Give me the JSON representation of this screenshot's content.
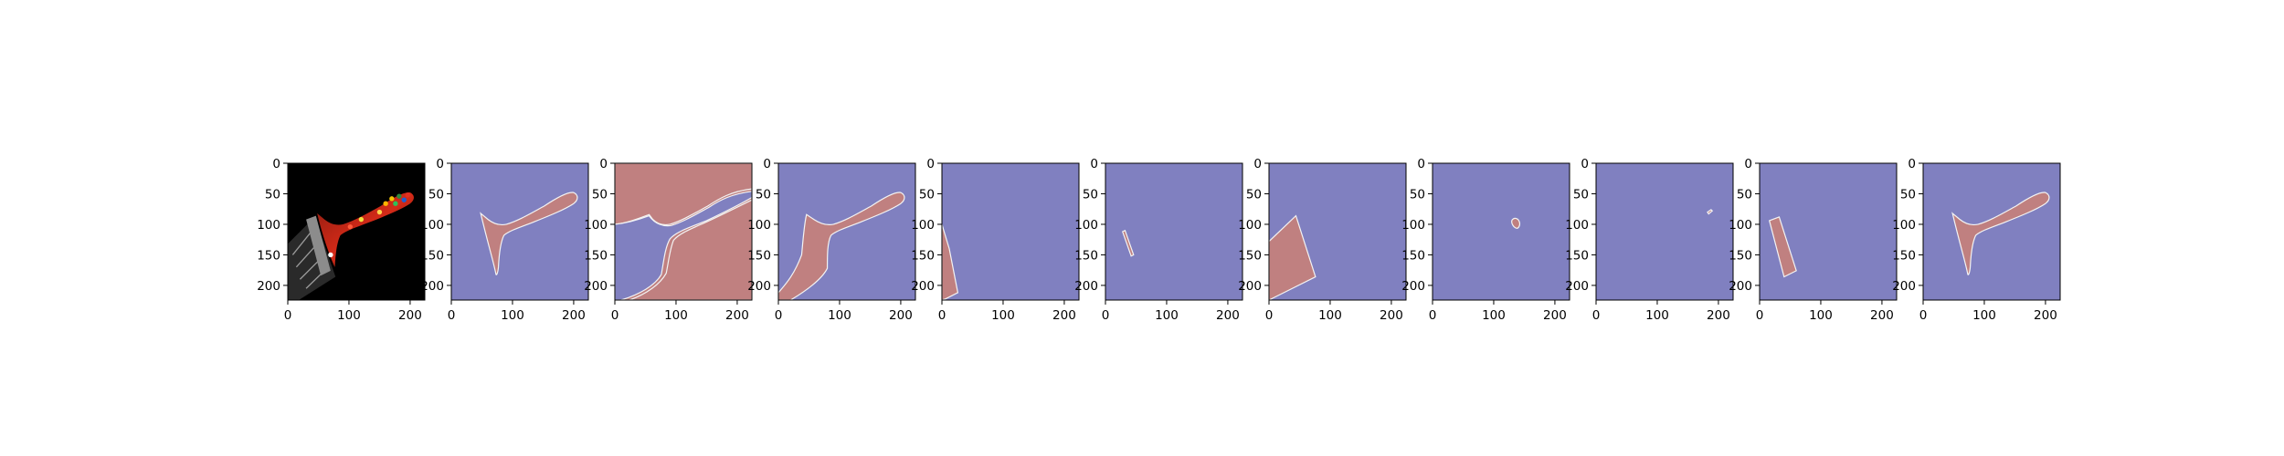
{
  "chart_data": {
    "type": "heatmap",
    "colors": {
      "background_class": "#8080c0",
      "foreground_class": "#c08080",
      "outline": "#f3f3f3"
    },
    "panels": [
      {
        "name": "input-image",
        "kind": "image",
        "xticks": [
          "0",
          "100",
          "200"
        ],
        "yticks": [
          "0",
          "50",
          "100",
          "150",
          "200"
        ],
        "xlim": [
          0,
          224
        ],
        "ylim": [
          224,
          0
        ]
      },
      {
        "name": "mask-1",
        "kind": "mask",
        "shape": "brush-outline",
        "xticks": [
          "0",
          "100",
          "200"
        ],
        "yticks": [
          "0",
          "50",
          "100",
          "150",
          "200"
        ],
        "xlim": [
          0,
          224
        ],
        "ylim": [
          224,
          0
        ]
      },
      {
        "name": "mask-2",
        "kind": "mask",
        "shape": "inverted-brush",
        "xticks": [
          "0",
          "100",
          "200"
        ],
        "yticks": [
          "0",
          "50",
          "100",
          "150",
          "200"
        ],
        "xlim": [
          0,
          224
        ],
        "ylim": [
          224,
          0
        ]
      },
      {
        "name": "mask-3",
        "kind": "mask",
        "shape": "full-brush",
        "xticks": [
          "0",
          "100",
          "200"
        ],
        "yticks": [
          "0",
          "50",
          "100",
          "150",
          "200"
        ],
        "xlim": [
          0,
          224
        ],
        "ylim": [
          224,
          0
        ]
      },
      {
        "name": "mask-4",
        "kind": "mask",
        "shape": "left-sliver",
        "xticks": [
          "0",
          "100",
          "200"
        ],
        "yticks": [
          "0",
          "50",
          "100",
          "150",
          "200"
        ],
        "xlim": [
          0,
          224
        ],
        "ylim": [
          224,
          0
        ]
      },
      {
        "name": "mask-5",
        "kind": "mask",
        "shape": "thin-strip",
        "xticks": [
          "0",
          "100",
          "200"
        ],
        "yticks": [
          "0",
          "50",
          "100",
          "150",
          "200"
        ],
        "xlim": [
          0,
          224
        ],
        "ylim": [
          224,
          0
        ]
      },
      {
        "name": "mask-6",
        "kind": "mask",
        "shape": "bristles",
        "xticks": [
          "0",
          "100",
          "200"
        ],
        "yticks": [
          "0",
          "50",
          "100",
          "150",
          "200"
        ],
        "xlim": [
          0,
          224
        ],
        "ylim": [
          224,
          0
        ]
      },
      {
        "name": "mask-7",
        "kind": "mask",
        "shape": "small-blob",
        "xticks": [
          "0",
          "100",
          "200"
        ],
        "yticks": [
          "0",
          "50",
          "100",
          "150",
          "200"
        ],
        "xlim": [
          0,
          224
        ],
        "ylim": [
          224,
          0
        ]
      },
      {
        "name": "mask-8",
        "kind": "mask",
        "shape": "tiny-speck",
        "xticks": [
          "0",
          "100",
          "200"
        ],
        "yticks": [
          "0",
          "50",
          "100",
          "150",
          "200"
        ],
        "xlim": [
          0,
          224
        ],
        "ylim": [
          224,
          0
        ]
      },
      {
        "name": "mask-9",
        "kind": "mask",
        "shape": "ferrule",
        "xticks": [
          "0",
          "100",
          "200"
        ],
        "yticks": [
          "0",
          "50",
          "100",
          "150",
          "200"
        ],
        "xlim": [
          0,
          224
        ],
        "ylim": [
          224,
          0
        ]
      },
      {
        "name": "mask-10",
        "kind": "mask",
        "shape": "brush-outline",
        "xticks": [
          "0",
          "100",
          "200"
        ],
        "yticks": [
          "0",
          "50",
          "100",
          "150",
          "200"
        ],
        "xlim": [
          0,
          224
        ],
        "ylim": [
          224,
          0
        ]
      }
    ]
  }
}
